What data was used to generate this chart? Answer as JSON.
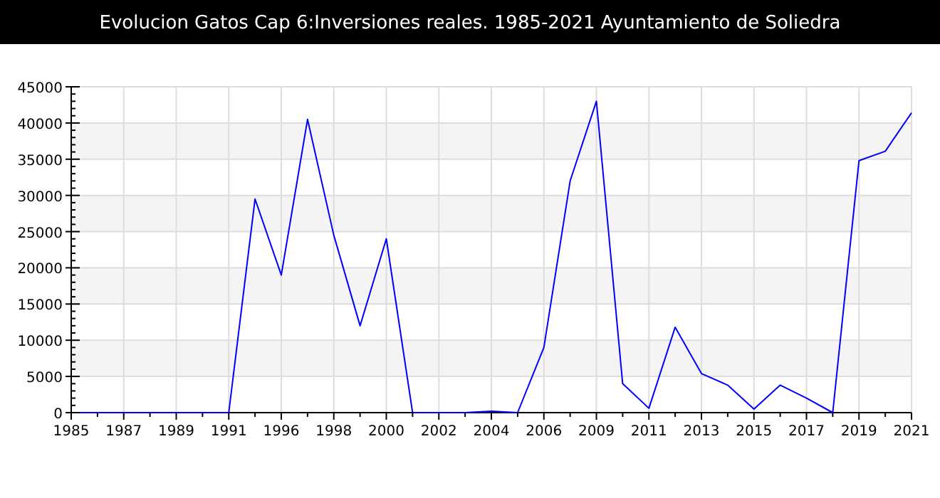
{
  "chart_data": {
    "type": "line",
    "title": "Evolucion Gatos Cap 6:Inversiones reales. 1985-2021 Ayuntamiento de Soliedra",
    "categories": [
      "1985",
      null,
      "1987",
      null,
      "1989",
      null,
      "1991",
      null,
      "1996",
      null,
      "1998",
      null,
      "2000",
      null,
      "2002",
      null,
      "2004",
      null,
      "2006",
      null,
      "2009",
      null,
      "2011",
      null,
      "2013",
      null,
      "2015",
      null,
      "2017",
      null,
      "2019",
      null,
      "2021"
    ],
    "series": [
      {
        "color": "#0000ff",
        "values": [
          0,
          0,
          0,
          0,
          0,
          0,
          0,
          29500,
          19000,
          40500,
          24500,
          12000,
          24000,
          0,
          0,
          0,
          200,
          0,
          9000,
          32000,
          43000,
          4000,
          600,
          11800,
          5400,
          3800,
          500,
          3800,
          2000,
          0,
          34800,
          36100,
          41400
        ]
      }
    ],
    "ylim": [
      0,
      45000
    ],
    "yticks": [
      0,
      5000,
      10000,
      15000,
      20000,
      25000,
      30000,
      35000,
      40000,
      45000
    ],
    "grid": true,
    "marker": "none",
    "line_style": "solid"
  }
}
